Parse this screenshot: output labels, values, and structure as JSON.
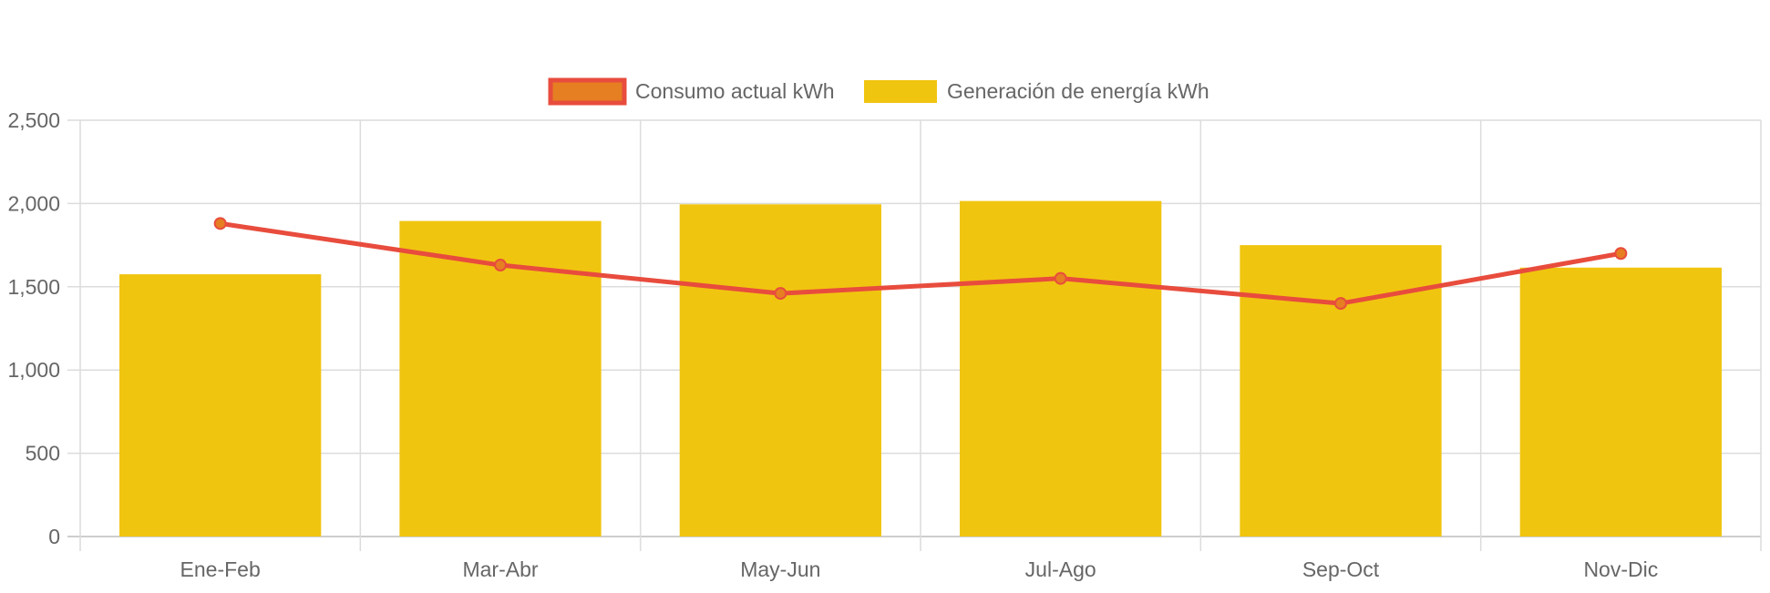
{
  "chart_data": {
    "type": "bar",
    "categories": [
      "Ene-Feb",
      "Mar-Abr",
      "May-Jun",
      "Jul-Ago",
      "Sep-Oct",
      "Nov-Dic"
    ],
    "series": [
      {
        "name": "Generación de energía kWh",
        "type": "bar",
        "values": [
          1575,
          1895,
          1995,
          2015,
          1750,
          1615
        ],
        "color": "#F0C510"
      },
      {
        "name": "Consumo actual kWh",
        "type": "line",
        "values": [
          1880,
          1630,
          1460,
          1550,
          1400,
          1700
        ],
        "color": "#E84C3D",
        "point_fill": "#E67E22"
      }
    ],
    "y_ticks": [
      "0",
      "500",
      "1,000",
      "1,500",
      "2,000",
      "2,500"
    ],
    "ylim": [
      0,
      2500
    ],
    "grid": true,
    "legend_position": "top-center",
    "title": "",
    "xlabel": "",
    "ylabel": ""
  }
}
